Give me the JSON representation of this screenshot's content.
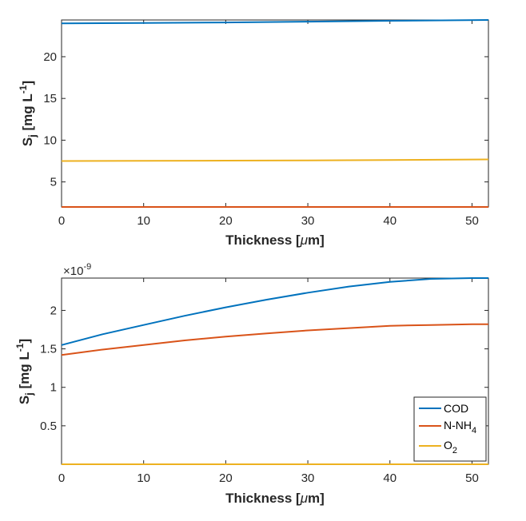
{
  "chart_data": [
    {
      "type": "line",
      "xlabel_main": "Thickness [",
      "xlabel_symbol": "μ",
      "xlabel_unit": "m]",
      "ylabel_main": "S",
      "ylabel_sub": "j",
      "ylabel_unit": " [mg L",
      "ylabel_sup": "-1",
      "ylabel_close": "]",
      "xlim": [
        0,
        52
      ],
      "ylim": [
        2,
        24.4
      ],
      "xticks": [
        0,
        10,
        20,
        30,
        40,
        50
      ],
      "yticks": [
        5,
        10,
        15,
        20
      ],
      "series": [
        {
          "name": "COD",
          "color": "#0072BD",
          "x": [
            0,
            10,
            20,
            30,
            40,
            52
          ],
          "values": [
            24.0,
            24.05,
            24.1,
            24.2,
            24.3,
            24.4
          ]
        },
        {
          "name": "N-NH4",
          "color": "#D95319",
          "x": [
            0,
            52
          ],
          "values": [
            2.0,
            2.0
          ]
        },
        {
          "name": "O2",
          "color": "#EDB120",
          "x": [
            0,
            10,
            20,
            30,
            40,
            52
          ],
          "values": [
            7.5,
            7.52,
            7.55,
            7.58,
            7.62,
            7.7
          ]
        }
      ]
    },
    {
      "type": "line",
      "xlabel_main": "Thickness [",
      "xlabel_symbol": "μ",
      "xlabel_unit": "m]",
      "ylabel_main": "S",
      "ylabel_sub": "j",
      "ylabel_unit": " [mg L",
      "ylabel_sup": "-1",
      "ylabel_close": "]",
      "exponent_prefix": "×10",
      "exponent_power": "-9",
      "xlim": [
        0,
        52
      ],
      "ylim": [
        0,
        2.42
      ],
      "xticks": [
        0,
        10,
        20,
        30,
        40,
        50
      ],
      "yticks": [
        0.5,
        1,
        1.5,
        2
      ],
      "ytick_labels": [
        "0.5",
        "1",
        "1.5",
        "2"
      ],
      "series": [
        {
          "name": "COD",
          "color": "#0072BD",
          "x": [
            0,
            5,
            10,
            15,
            20,
            25,
            30,
            35,
            40,
            45,
            50,
            52
          ],
          "values": [
            1.55,
            1.69,
            1.81,
            1.93,
            2.04,
            2.14,
            2.23,
            2.31,
            2.37,
            2.41,
            2.42,
            2.42
          ]
        },
        {
          "name": "N-NH4",
          "color": "#D95319",
          "x": [
            0,
            5,
            10,
            15,
            20,
            25,
            30,
            35,
            40,
            45,
            50,
            52
          ],
          "values": [
            1.42,
            1.49,
            1.55,
            1.61,
            1.66,
            1.7,
            1.74,
            1.77,
            1.8,
            1.81,
            1.82,
            1.82
          ]
        },
        {
          "name": "O2",
          "color": "#EDB120",
          "x": [
            0,
            52
          ],
          "values": [
            0,
            0
          ]
        }
      ],
      "legend": {
        "position": "bottom-right",
        "entries": [
          {
            "label": "COD",
            "sub": ""
          },
          {
            "label": "N-NH",
            "sub": "4"
          },
          {
            "label": "O",
            "sub": "2"
          }
        ]
      }
    }
  ]
}
